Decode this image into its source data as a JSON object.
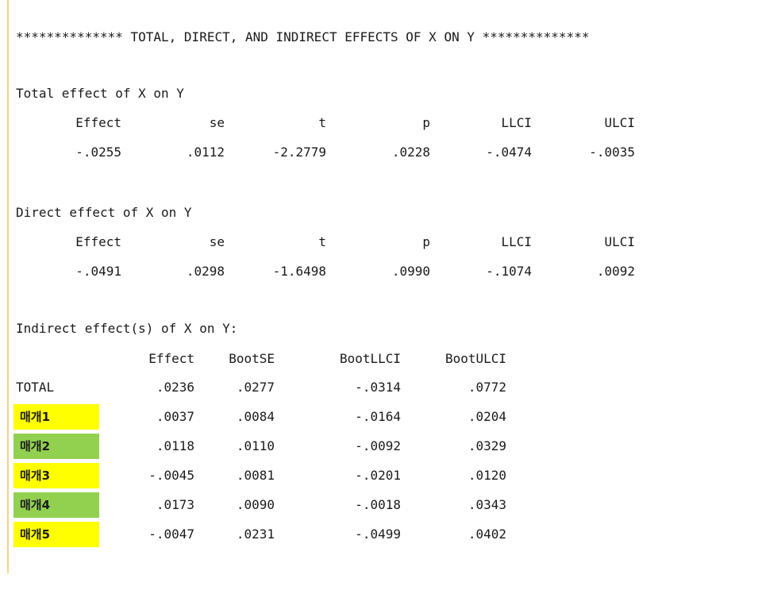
{
  "header": {
    "title": "************** TOTAL, DIRECT, AND INDIRECT EFFECTS OF X ON Y **************"
  },
  "total_effect": {
    "label": "Total effect of X on Y",
    "columns": [
      "Effect",
      "se",
      "t",
      "p",
      "LLCI",
      "ULCI"
    ],
    "values": [
      "-.0255",
      ".0112",
      "-2.2779",
      ".0228",
      "-.0474",
      "-.0035"
    ]
  },
  "direct_effect": {
    "label": "Direct effect of X on Y",
    "columns": [
      "Effect",
      "se",
      "t",
      "p",
      "LLCI",
      "ULCI"
    ],
    "values": [
      "-.0491",
      ".0298",
      "-1.6498",
      ".0990",
      "-.1074",
      ".0092"
    ]
  },
  "indirect_effect": {
    "label": "Indirect effect(s) of X on Y:",
    "columns": [
      "Effect",
      "BootSE",
      "BootLLCI",
      "BootULCI"
    ],
    "rows": [
      {
        "label": "TOTAL",
        "values": [
          ".0236",
          ".0277",
          "-.0314",
          ".0772"
        ]
      },
      {
        "label": "매개1",
        "highlight": "#ffff00",
        "values": [
          ".0037",
          ".0084",
          "-.0164",
          ".0204"
        ]
      },
      {
        "label": "매개2",
        "highlight": "#92d050",
        "values": [
          ".0118",
          ".0110",
          "-.0092",
          ".0329"
        ]
      },
      {
        "label": "매개3",
        "highlight": "#ffff00",
        "values": [
          "-.0045",
          ".0081",
          "-.0201",
          ".0120"
        ]
      },
      {
        "label": "매개4",
        "highlight": "#92d050",
        "values": [
          ".0173",
          ".0090",
          "-.0018",
          ".0343"
        ]
      },
      {
        "label": "매개5",
        "highlight": "#ffff00",
        "values": [
          "-.0047",
          ".0231",
          "-.0499",
          ".0402"
        ]
      }
    ]
  }
}
